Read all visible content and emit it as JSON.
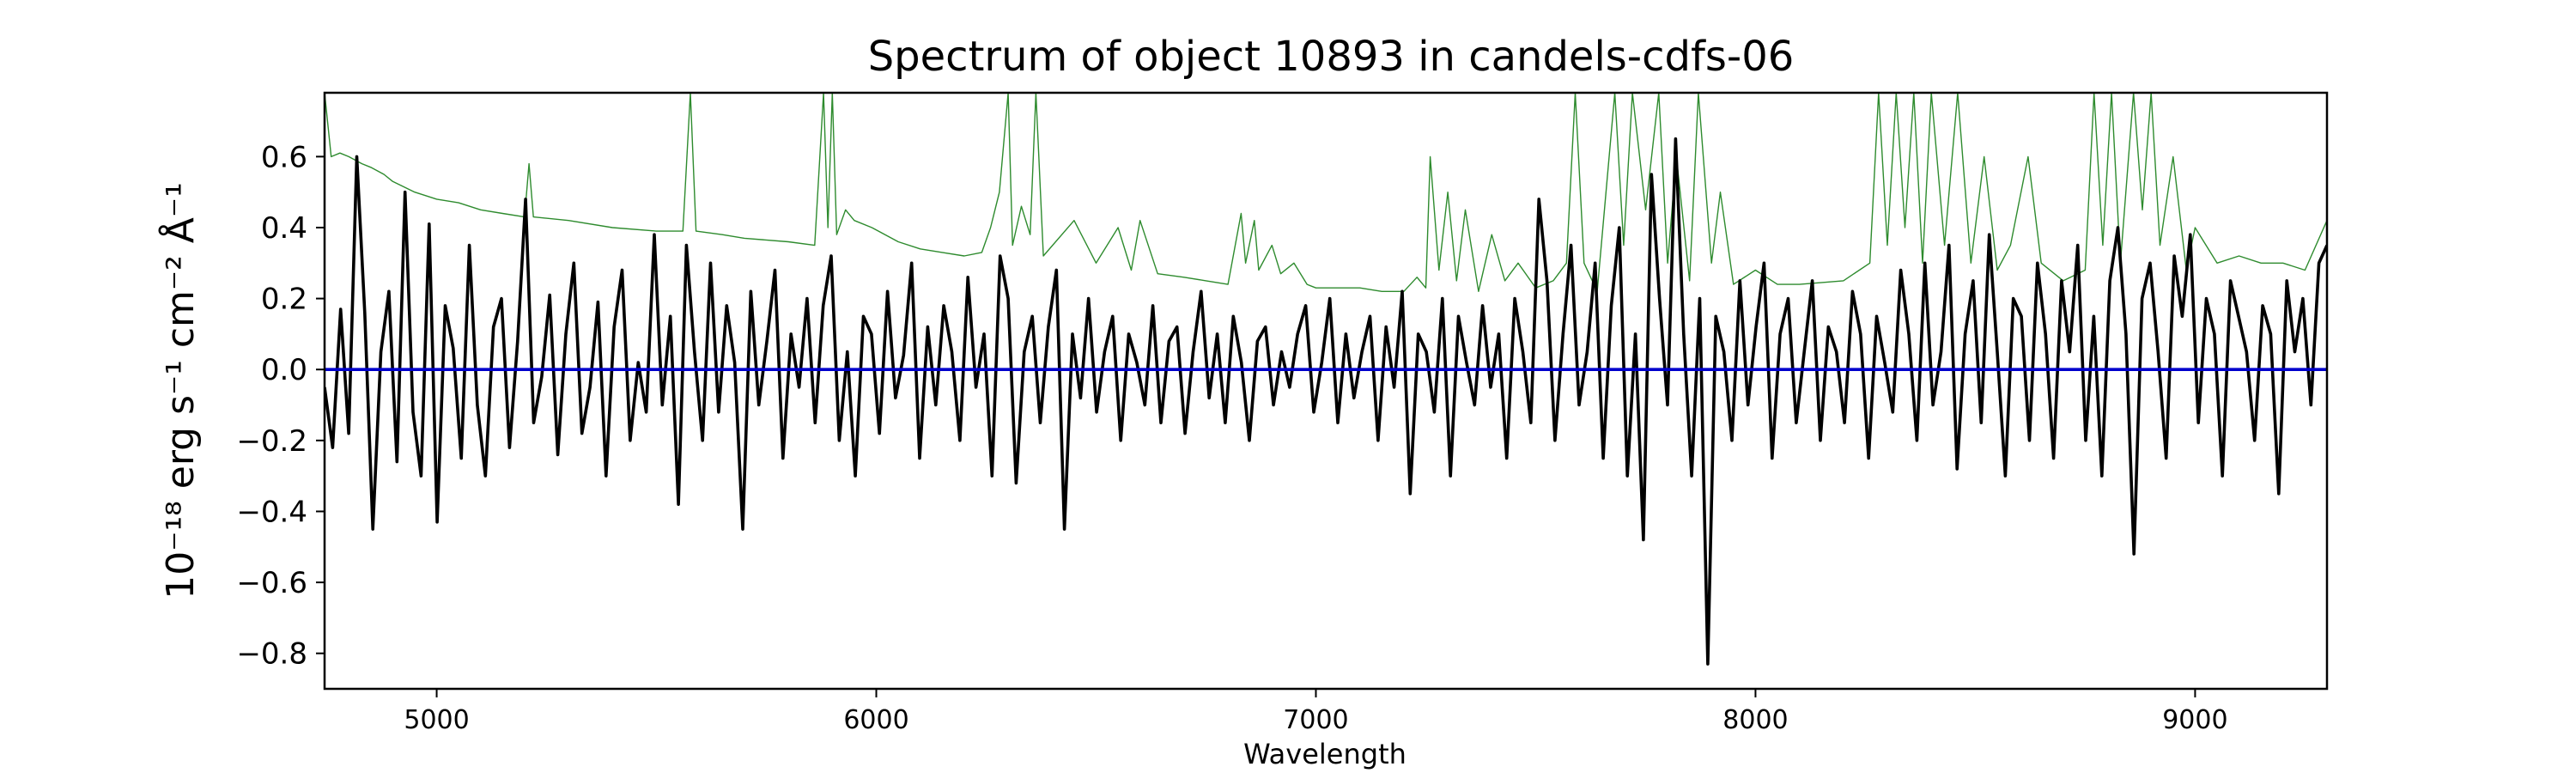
{
  "chart_data": {
    "type": "line",
    "title": "Spectrum of object 10893 in candels-cdfs-06",
    "xlabel": "Wavelength",
    "ylabel": "10⁻¹⁸ erg s⁻¹ cm⁻² Å⁻¹",
    "xlim": [
      4745,
      9300
    ],
    "ylim": [
      -0.9,
      0.78
    ],
    "xticks": [
      5000,
      6000,
      7000,
      8000,
      9000
    ],
    "yticks": [
      -0.8,
      -0.6,
      -0.4,
      -0.2,
      0.0,
      0.2,
      0.4,
      0.6
    ],
    "grid": false,
    "series": [
      {
        "color": "#2e8b2e",
        "style": "thin",
        "x": [
          4745,
          4760,
          4780,
          4800,
          4830,
          4850,
          4880,
          4900,
          4950,
          5000,
          5050,
          5100,
          5150,
          5200,
          5210,
          5220,
          5300,
          5400,
          5500,
          5560,
          5577,
          5590,
          5650,
          5700,
          5800,
          5860,
          5880,
          5890,
          5900,
          5910,
          5930,
          5950,
          5990,
          6050,
          6100,
          6150,
          6200,
          6240,
          6260,
          6280,
          6300,
          6310,
          6330,
          6350,
          6363,
          6380,
          6450,
          6500,
          6550,
          6580,
          6600,
          6640,
          6700,
          6750,
          6800,
          6830,
          6840,
          6860,
          6870,
          6900,
          6920,
          6950,
          6980,
          7000,
          7050,
          7100,
          7150,
          7200,
          7230,
          7250,
          7260,
          7280,
          7300,
          7320,
          7340,
          7370,
          7400,
          7430,
          7460,
          7500,
          7540,
          7570,
          7590,
          7610,
          7640,
          7680,
          7700,
          7720,
          7750,
          7780,
          7800,
          7820,
          7850,
          7870,
          7900,
          7920,
          7950,
          8000,
          8050,
          8100,
          8200,
          8260,
          8280,
          8300,
          8320,
          8340,
          8360,
          8380,
          8400,
          8430,
          8460,
          8490,
          8520,
          8550,
          8580,
          8620,
          8650,
          8700,
          8750,
          8770,
          8790,
          8810,
          8830,
          8860,
          8880,
          8900,
          8920,
          8950,
          8980,
          9000,
          9050,
          9100,
          9150,
          9200,
          9250,
          9300
        ],
        "y": [
          0.78,
          0.6,
          0.61,
          0.6,
          0.58,
          0.57,
          0.55,
          0.53,
          0.5,
          0.48,
          0.47,
          0.45,
          0.44,
          0.43,
          0.58,
          0.43,
          0.42,
          0.4,
          0.39,
          0.39,
          0.78,
          0.39,
          0.38,
          0.37,
          0.36,
          0.35,
          0.78,
          0.4,
          0.78,
          0.38,
          0.45,
          0.42,
          0.4,
          0.36,
          0.34,
          0.33,
          0.32,
          0.33,
          0.4,
          0.5,
          0.78,
          0.35,
          0.46,
          0.38,
          0.78,
          0.32,
          0.42,
          0.3,
          0.4,
          0.28,
          0.42,
          0.27,
          0.26,
          0.25,
          0.24,
          0.44,
          0.3,
          0.42,
          0.28,
          0.35,
          0.27,
          0.3,
          0.24,
          0.23,
          0.23,
          0.23,
          0.22,
          0.22,
          0.26,
          0.23,
          0.6,
          0.28,
          0.5,
          0.25,
          0.45,
          0.22,
          0.38,
          0.25,
          0.3,
          0.23,
          0.25,
          0.3,
          0.78,
          0.3,
          0.22,
          0.78,
          0.35,
          0.78,
          0.45,
          0.78,
          0.3,
          0.6,
          0.25,
          0.78,
          0.3,
          0.5,
          0.24,
          0.28,
          0.24,
          0.24,
          0.25,
          0.3,
          0.78,
          0.35,
          0.78,
          0.4,
          0.78,
          0.3,
          0.78,
          0.35,
          0.78,
          0.3,
          0.6,
          0.28,
          0.35,
          0.6,
          0.3,
          0.25,
          0.28,
          0.78,
          0.35,
          0.78,
          0.3,
          0.78,
          0.45,
          0.78,
          0.35,
          0.6,
          0.28,
          0.4,
          0.3,
          0.32,
          0.3,
          0.3,
          0.28,
          0.42
        ]
      },
      {
        "color": "#000000",
        "style": "thick",
        "x_start": 4745,
        "x_end": 9300,
        "y": [
          -0.05,
          -0.22,
          0.17,
          -0.18,
          0.6,
          0.16,
          -0.45,
          0.05,
          0.22,
          -0.26,
          0.5,
          -0.12,
          -0.3,
          0.41,
          -0.43,
          0.18,
          0.06,
          -0.25,
          0.35,
          -0.1,
          -0.3,
          0.12,
          0.2,
          -0.22,
          0.08,
          0.48,
          -0.15,
          -0.02,
          0.21,
          -0.24,
          0.1,
          0.3,
          -0.18,
          -0.05,
          0.19,
          -0.3,
          0.12,
          0.28,
          -0.2,
          0.02,
          -0.12,
          0.38,
          -0.1,
          0.15,
          -0.38,
          0.35,
          0.05,
          -0.2,
          0.3,
          -0.12,
          0.18,
          0.02,
          -0.45,
          0.22,
          -0.1,
          0.08,
          0.28,
          -0.25,
          0.1,
          -0.05,
          0.2,
          -0.15,
          0.18,
          0.32,
          -0.2,
          0.05,
          -0.3,
          0.15,
          0.1,
          -0.18,
          0.22,
          -0.08,
          0.04,
          0.3,
          -0.25,
          0.12,
          -0.1,
          0.18,
          0.05,
          -0.2,
          0.26,
          -0.05,
          0.1,
          -0.3,
          0.32,
          0.2,
          -0.32,
          0.05,
          0.15,
          -0.15,
          0.12,
          0.28,
          -0.45,
          0.1,
          -0.08,
          0.2,
          -0.12,
          0.05,
          0.15,
          -0.2,
          0.1,
          0.02,
          -0.1,
          0.18,
          -0.15,
          0.08,
          0.12,
          -0.18,
          0.05,
          0.22,
          -0.08,
          0.1,
          -0.15,
          0.15,
          0.02,
          -0.2,
          0.08,
          0.12,
          -0.1,
          0.05,
          -0.05,
          0.1,
          0.18,
          -0.12,
          0.02,
          0.2,
          -0.15,
          0.1,
          -0.08,
          0.05,
          0.15,
          -0.2,
          0.12,
          -0.05,
          0.22,
          -0.35,
          0.1,
          0.05,
          -0.12,
          0.2,
          -0.3,
          0.15,
          0.02,
          -0.1,
          0.18,
          -0.05,
          0.1,
          -0.25,
          0.2,
          0.05,
          -0.15,
          0.48,
          0.25,
          -0.2,
          0.1,
          0.35,
          -0.1,
          0.05,
          0.3,
          -0.25,
          0.18,
          0.4,
          -0.3,
          0.1,
          -0.48,
          0.55,
          0.2,
          -0.1,
          0.65,
          0.1,
          -0.3,
          0.2,
          -0.83,
          0.15,
          0.05,
          -0.2,
          0.25,
          -0.1,
          0.12,
          0.3,
          -0.25,
          0.1,
          0.2,
          -0.15,
          0.05,
          0.25,
          -0.2,
          0.12,
          0.05,
          -0.15,
          0.22,
          0.1,
          -0.25,
          0.15,
          0.02,
          -0.12,
          0.28,
          0.1,
          -0.2,
          0.3,
          -0.1,
          0.05,
          0.35,
          -0.28,
          0.1,
          0.25,
          -0.15,
          0.38,
          0.05,
          -0.3,
          0.2,
          0.15,
          -0.2,
          0.3,
          0.1,
          -0.25,
          0.25,
          0.05,
          0.35,
          -0.2,
          0.15,
          -0.3,
          0.25,
          0.4,
          0.1,
          -0.52,
          0.2,
          0.3,
          0.05,
          -0.25,
          0.32,
          0.15,
          0.38,
          -0.15,
          0.2,
          0.1,
          -0.3,
          0.25,
          0.15,
          0.05,
          -0.2,
          0.18,
          0.1,
          -0.35,
          0.25,
          0.05,
          0.2,
          -0.1,
          0.3,
          0.35
        ]
      },
      {
        "color": "#0000cc",
        "style": "zero-line",
        "x": [
          4745,
          9300
        ],
        "y": [
          0.0,
          0.0
        ]
      }
    ]
  }
}
